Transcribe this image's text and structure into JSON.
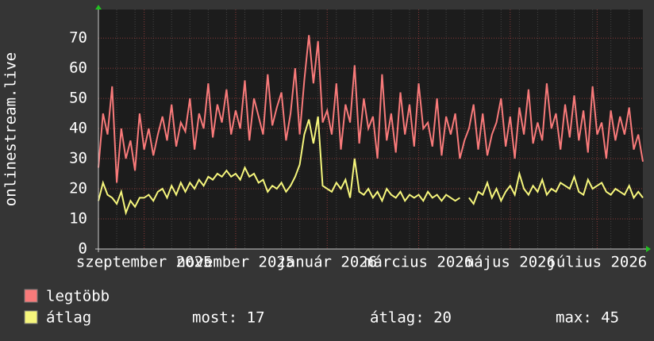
{
  "chart_data": {
    "type": "line",
    "ylabel": "onlinestream.live",
    "categories": [
      null,
      null,
      null,
      null,
      null,
      null,
      null,
      null,
      null,
      null,
      "szeptember 2025",
      null,
      null,
      null,
      null,
      null,
      null,
      null,
      null,
      null,
      null,
      null,
      null,
      null,
      null,
      null,
      null,
      null,
      null,
      null,
      "november 2025",
      null,
      null,
      null,
      null,
      null,
      null,
      null,
      null,
      null,
      null,
      null,
      null,
      null,
      null,
      null,
      null,
      null,
      null,
      null,
      "január 2026",
      null,
      null,
      null,
      null,
      null,
      null,
      null,
      null,
      null,
      null,
      null,
      null,
      null,
      null,
      null,
      null,
      null,
      null,
      null,
      "március 2026",
      null,
      null,
      null,
      null,
      null,
      null,
      null,
      null,
      null,
      null,
      null,
      null,
      null,
      null,
      null,
      null,
      null,
      null,
      null,
      "május 2026",
      null,
      null,
      null,
      null,
      null,
      null,
      null,
      null,
      null,
      null,
      null,
      null,
      null,
      null,
      null,
      null,
      null,
      null,
      "július 2026",
      null,
      null,
      null,
      null,
      null,
      null,
      null,
      null,
      null,
      null
    ],
    "series": [
      {
        "name": "legtöbb",
        "color": "#f87a7a",
        "values": [
          27,
          45,
          38,
          54,
          22,
          40,
          30,
          36,
          26,
          45,
          33,
          40,
          31,
          38,
          44,
          36,
          48,
          34,
          42,
          39,
          50,
          33,
          45,
          40,
          55,
          37,
          48,
          42,
          53,
          38,
          46,
          40,
          56,
          36,
          50,
          44,
          38,
          58,
          41,
          47,
          52,
          36,
          45,
          60,
          38,
          56,
          71,
          55,
          69,
          42,
          46,
          38,
          55,
          33,
          48,
          42,
          61,
          35,
          50,
          40,
          44,
          30,
          58,
          36,
          45,
          32,
          52,
          38,
          48,
          34,
          55,
          40,
          42,
          34,
          50,
          31,
          44,
          38,
          45,
          30,
          36,
          40,
          48,
          33,
          45,
          31,
          38,
          42,
          50,
          34,
          44,
          30,
          47,
          38,
          53,
          35,
          42,
          36,
          55,
          40,
          45,
          33,
          48,
          37,
          51,
          36,
          46,
          32,
          54,
          38,
          42,
          30,
          46,
          36,
          44,
          38,
          47,
          33,
          38,
          29
        ]
      },
      {
        "name": "átlag",
        "color": "#f6f67c",
        "values": [
          16,
          22,
          18,
          17,
          15,
          19,
          12,
          16,
          14,
          17,
          17,
          18,
          16,
          19,
          20,
          17,
          21,
          18,
          22,
          19,
          22,
          20,
          23,
          21,
          24,
          23,
          25,
          24,
          26,
          24,
          25,
          23,
          27,
          24,
          25,
          22,
          23,
          19,
          21,
          20,
          22,
          19,
          21,
          24,
          28,
          38,
          43,
          35,
          44,
          21,
          20,
          19,
          22,
          20,
          23,
          17,
          30,
          19,
          18,
          20,
          17,
          19,
          16,
          20,
          18,
          17,
          19,
          16,
          18,
          17,
          18,
          16,
          19,
          17,
          18,
          16,
          18,
          17,
          16,
          17,
          null,
          17,
          15,
          19,
          18,
          22,
          17,
          20,
          16,
          19,
          21,
          18,
          25,
          20,
          18,
          21,
          19,
          23,
          18,
          20,
          19,
          22,
          21,
          20,
          24,
          19,
          18,
          23,
          20,
          21,
          22,
          19,
          18,
          20,
          19,
          18,
          21,
          17,
          19,
          17
        ]
      }
    ],
    "stats": [
      "most: 17",
      "átlag: 20",
      "max: 45"
    ],
    "ylim": [
      0,
      79.5
    ],
    "yticks": [
      0,
      10,
      20,
      30,
      40,
      50,
      60,
      70
    ],
    "grid": true
  }
}
